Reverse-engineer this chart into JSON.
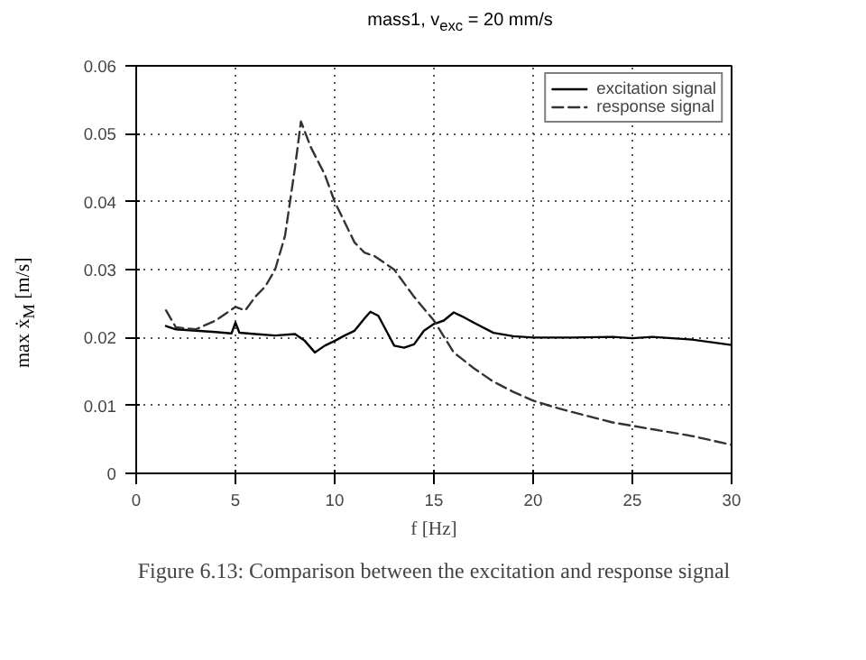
{
  "chart_data": {
    "type": "line",
    "title": "mass1, v$_{exc}$ = 20 mm/s",
    "xlabel": "f [Hz]",
    "ylabel": "max ẋ$_{M}$ [m/s]",
    "xlim": [
      0,
      30
    ],
    "xticks": [
      0,
      5,
      10,
      15,
      20,
      25,
      30
    ],
    "ylim": [
      0,
      0.06
    ],
    "yticks": [
      0,
      0.01,
      0.02,
      0.03,
      0.04,
      0.05,
      0.06
    ],
    "grid": true,
    "legend": "top right",
    "annotations": [
      "Figure 6.13: Comparison between the excitation and response signal"
    ],
    "series": [
      {
        "name": "excitation signal",
        "color": "#000000",
        "line_style": "solid",
        "x": [
          1.5,
          2,
          3,
          4,
          4.8,
          5,
          5.2,
          6,
          7,
          8,
          8.5,
          9,
          9.5,
          10,
          10.5,
          11,
          11.5,
          11.8,
          12.2,
          12.6,
          13,
          13.5,
          14,
          14.5,
          15,
          15.5,
          16,
          16.5,
          17,
          18,
          19,
          20,
          22,
          24,
          25,
          26,
          27,
          28,
          29,
          30
        ],
        "values": [
          0.0217,
          0.0212,
          0.021,
          0.0208,
          0.0206,
          0.0222,
          0.0207,
          0.0205,
          0.0203,
          0.0205,
          0.0195,
          0.0178,
          0.0188,
          0.0195,
          0.0203,
          0.021,
          0.0228,
          0.0238,
          0.0232,
          0.021,
          0.0188,
          0.0185,
          0.019,
          0.021,
          0.022,
          0.0225,
          0.0237,
          0.023,
          0.0222,
          0.0207,
          0.0202,
          0.02,
          0.02,
          0.0201,
          0.0199,
          0.0201,
          0.0199,
          0.0197,
          0.0193,
          0.0189
        ]
      },
      {
        "name": "response signal",
        "color": "#333333",
        "line_style": "dashed",
        "x": [
          1.5,
          2,
          3,
          4,
          5,
          5.5,
          6,
          6.5,
          7,
          7.5,
          8,
          8.3,
          8.8,
          9.5,
          10,
          10.5,
          11,
          11.5,
          12,
          12.5,
          13,
          14,
          15,
          16,
          17,
          18,
          19,
          20,
          21,
          22,
          24,
          26,
          28,
          30
        ],
        "values": [
          0.024,
          0.0215,
          0.0212,
          0.0225,
          0.0245,
          0.024,
          0.026,
          0.0275,
          0.03,
          0.035,
          0.045,
          0.0518,
          0.048,
          0.044,
          0.04,
          0.037,
          0.034,
          0.0325,
          0.032,
          0.031,
          0.03,
          0.026,
          0.0225,
          0.0178,
          0.0155,
          0.0135,
          0.012,
          0.0107,
          0.0098,
          0.009,
          0.0075,
          0.0065,
          0.0055,
          0.0042
        ]
      }
    ]
  }
}
